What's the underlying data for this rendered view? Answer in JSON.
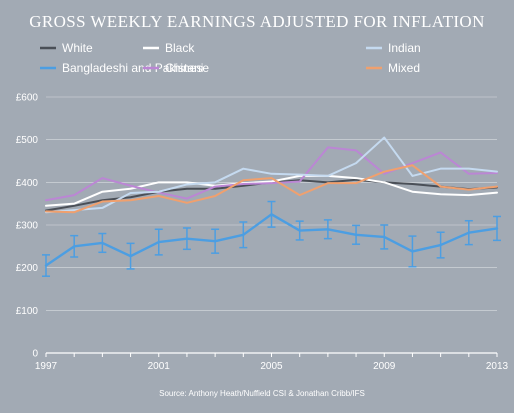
{
  "chart_data": {
    "type": "line",
    "title": "GROSS WEEKLY EARNINGS ADJUSTED FOR INFLATION",
    "source": "Source: Anthony Heath/Nuffield CSI & Jonathan Cribb/IFS",
    "x": [
      1997,
      1998,
      1999,
      2000,
      2001,
      2002,
      2003,
      2004,
      2005,
      2006,
      2007,
      2008,
      2009,
      2010,
      2011,
      2012,
      2013
    ],
    "xticks": [
      "1997",
      "2001",
      "2005",
      "2009",
      "2013"
    ],
    "xlim": [
      1997,
      2013
    ],
    "ylim": [
      0,
      600
    ],
    "yticks": [
      "0",
      "£100",
      "£200",
      "£300",
      "£400",
      "£500",
      "£600"
    ],
    "xlabel": "",
    "ylabel": "",
    "grid": "horizontal",
    "legend_position": "top",
    "series": [
      {
        "name": "White",
        "color": "#4a4f57",
        "values": [
          334,
          345,
          358,
          365,
          378,
          385,
          385,
          392,
          400,
          405,
          400,
          406,
          400,
          396,
          390,
          384,
          388
        ]
      },
      {
        "name": "Bangladeshi and Pakistani",
        "color": "#4c9ee2",
        "values": [
          205,
          250,
          258,
          227,
          260,
          268,
          262,
          277,
          325,
          287,
          290,
          277,
          272,
          238,
          253,
          282,
          292
        ],
        "error": [
          25,
          25,
          22,
          30,
          30,
          25,
          28,
          30,
          30,
          22,
          22,
          22,
          28,
          36,
          30,
          28,
          28
        ]
      },
      {
        "name": "Black",
        "color": "#ffffff",
        "values": [
          345,
          350,
          378,
          385,
          400,
          400,
          392,
          398,
          402,
          415,
          415,
          410,
          400,
          378,
          372,
          370,
          376
        ]
      },
      {
        "name": "Chinese",
        "color": "#bb86d4",
        "values": [
          358,
          370,
          410,
          392,
          376,
          362,
          390,
          396,
          398,
          402,
          482,
          475,
          420,
          445,
          470,
          420,
          422
        ]
      },
      {
        "name": "Indian",
        "color": "#c5daf0",
        "values": [
          330,
          335,
          340,
          375,
          378,
          395,
          400,
          432,
          420,
          418,
          415,
          445,
          505,
          415,
          432,
          432,
          425
        ]
      },
      {
        "name": "Mixed",
        "color": "#f0a06e",
        "values": [
          332,
          330,
          355,
          358,
          368,
          352,
          368,
          405,
          410,
          370,
          398,
          398,
          425,
          440,
          390,
          383,
          390
        ]
      }
    ]
  }
}
